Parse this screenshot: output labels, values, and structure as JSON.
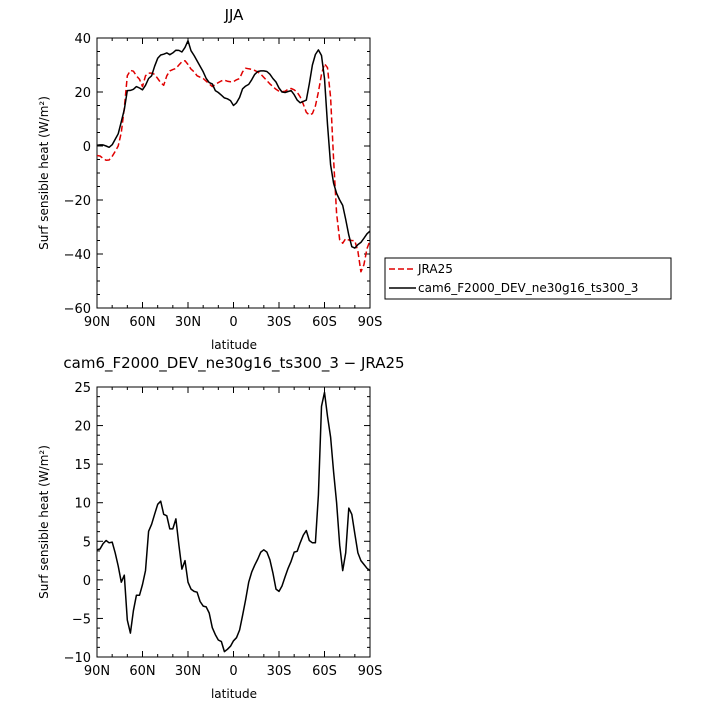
{
  "chart_data": [
    {
      "type": "line",
      "title": "JJA",
      "xlabel": "latitude",
      "ylabel": "Surf sensible heat (W/m²)",
      "xlim": [
        90,
        -90
      ],
      "ylim": [
        -60,
        40
      ],
      "xticks": [
        90,
        60,
        30,
        0,
        -30,
        -60,
        -90
      ],
      "xticklabels": [
        "90N",
        "60N",
        "30N",
        "0",
        "30S",
        "60S",
        "90S"
      ],
      "yticks": [
        -60,
        -40,
        -20,
        0,
        20,
        40
      ],
      "yticklabels": [
        "−60",
        "−40",
        "−20",
        "0",
        "20",
        "40"
      ],
      "legend": "right",
      "series": [
        {
          "name": "JRA25",
          "color": "#e00000",
          "dash": "dashed",
          "x": [
            90,
            88,
            86,
            84,
            82,
            80,
            78,
            76,
            74,
            72,
            70,
            68,
            66,
            64,
            62,
            60,
            58,
            56,
            54,
            52,
            50,
            48,
            46,
            44,
            42,
            40,
            38,
            36,
            34,
            32,
            30,
            28,
            26,
            24,
            22,
            20,
            18,
            16,
            14,
            12,
            10,
            8,
            6,
            4,
            2,
            0,
            -2,
            -4,
            -6,
            -8,
            -10,
            -12,
            -14,
            -16,
            -18,
            -20,
            -22,
            -24,
            -26,
            -28,
            -30,
            -32,
            -34,
            -36,
            -38,
            -40,
            -42,
            -44,
            -46,
            -48,
            -50,
            -52,
            -54,
            -56,
            -58,
            -60,
            -62,
            -64,
            -66,
            -68,
            -70,
            -72,
            -74,
            -76,
            -78,
            -80,
            -82,
            -84,
            -86,
            -88,
            -90
          ],
          "y": [
            -3.5,
            -3.7,
            -4.6,
            -5.3,
            -5.2,
            -3.8,
            -2,
            0,
            5,
            14,
            26,
            28,
            27.7,
            26,
            24.7,
            22,
            26,
            27,
            27,
            26.5,
            25,
            23.5,
            22.5,
            26,
            27.8,
            28.3,
            28.7,
            30,
            31.2,
            31.6,
            30.2,
            28.5,
            27.5,
            26,
            25.5,
            25,
            24,
            23,
            22,
            22.8,
            23.5,
            24.1,
            24.4,
            24,
            23.8,
            23.8,
            24.5,
            25,
            27.5,
            28.8,
            28.6,
            28.4,
            28,
            27.4,
            26.6,
            25.4,
            24.2,
            23,
            22,
            21,
            20.3,
            20.1,
            20.3,
            21,
            21.3,
            20.8,
            19.9,
            18.2,
            15.5,
            12.5,
            11.5,
            12,
            14.8,
            20,
            26.5,
            30.5,
            29,
            18,
            -5,
            -25,
            -34.8,
            -36,
            -34.3,
            -34.8,
            -35,
            -35.1,
            -39,
            -46.6,
            -44,
            -38,
            -35
          ]
        },
        {
          "name": "cam6_F2000_DEV_ne30g16_ts300_3",
          "color": "#000000",
          "dash": "solid",
          "x": [
            90,
            88,
            86,
            84,
            82,
            80,
            78,
            76,
            74,
            72,
            70,
            68,
            66,
            64,
            62,
            60,
            58,
            56,
            54,
            52,
            50,
            48,
            46,
            44,
            42,
            40,
            38,
            36,
            34,
            32,
            30,
            28,
            26,
            24,
            22,
            20,
            18,
            16,
            14,
            12,
            10,
            8,
            6,
            4,
            2,
            0,
            -2,
            -4,
            -6,
            -8,
            -10,
            -12,
            -14,
            -16,
            -18,
            -20,
            -22,
            -24,
            -26,
            -28,
            -30,
            -32,
            -34,
            -36,
            -38,
            -40,
            -42,
            -44,
            -46,
            -48,
            -50,
            -52,
            -54,
            -56,
            -58,
            -60,
            -62,
            -64,
            -66,
            -68,
            -70,
            -72,
            -74,
            -76,
            -78,
            -80,
            -82,
            -84,
            -86,
            -88,
            -90
          ],
          "y": [
            0.3,
            0.4,
            0.4,
            0,
            -0.5,
            0.5,
            2.5,
            4.5,
            9,
            13.5,
            20.5,
            20.6,
            21,
            22,
            21.5,
            20.8,
            22.5,
            25,
            26,
            29.5,
            32.5,
            33.7,
            34,
            34.5,
            33.8,
            34.5,
            35.5,
            35.4,
            34.8,
            36.5,
            39,
            35.3,
            33.5,
            31.5,
            29.5,
            27.5,
            25,
            23.5,
            23,
            20.5,
            19.8,
            18.8,
            17.8,
            17.5,
            16.8,
            15,
            16,
            18,
            21.2,
            22.2,
            22.8,
            24.5,
            26.5,
            27.6,
            27.8,
            27.8,
            27.6,
            26.6,
            25,
            23.7,
            21.5,
            20,
            19.8,
            20.2,
            20.5,
            19,
            17,
            16,
            16.5,
            17,
            23,
            30,
            33.9,
            35.6,
            33.5,
            25,
            8,
            -7,
            -13.8,
            -17.5,
            -20,
            -22,
            -27.2,
            -33,
            -37.3,
            -37.8,
            -36.5,
            -35.7,
            -34.2,
            -32.5,
            -31.5
          ]
        }
      ]
    },
    {
      "type": "line",
      "title": "cam6_F2000_DEV_ne30g16_ts300_3 − JRA25",
      "xlabel": "latitude",
      "ylabel": "Surf sensible heat (W/m²)",
      "xlim": [
        90,
        -90
      ],
      "ylim": [
        -10,
        25
      ],
      "xticks": [
        90,
        60,
        30,
        0,
        -30,
        -60,
        -90
      ],
      "xticklabels": [
        "90N",
        "60N",
        "30N",
        "0",
        "30S",
        "60S",
        "90S"
      ],
      "yticks": [
        -10,
        -5,
        0,
        5,
        10,
        15,
        20,
        25
      ],
      "yticklabels": [
        "−10",
        "−5",
        "0",
        "5",
        "10",
        "15",
        "20",
        "25"
      ],
      "series": [
        {
          "color": "#000000",
          "dash": "solid",
          "x": [
            90,
            88,
            86,
            84,
            82,
            80,
            78,
            76,
            74,
            72,
            70,
            68,
            66,
            64,
            62,
            60,
            58,
            56,
            54,
            52,
            50,
            48,
            46,
            44,
            42,
            40,
            38,
            36,
            34,
            32,
            30,
            28,
            26,
            24,
            22,
            20,
            18,
            16,
            14,
            12,
            10,
            8,
            6,
            4,
            2,
            0,
            -2,
            -4,
            -6,
            -8,
            -10,
            -12,
            -14,
            -16,
            -18,
            -20,
            -22,
            -24,
            -26,
            -28,
            -30,
            -32,
            -34,
            -36,
            -38,
            -40,
            -42,
            -44,
            -46,
            -48,
            -50,
            -52,
            -54,
            -56,
            -58,
            -60,
            -62,
            -64,
            -66,
            -68,
            -70,
            -72,
            -74,
            -76,
            -78,
            -80,
            -82,
            -84,
            -86,
            -88,
            -90
          ],
          "y": [
            3.9,
            4,
            4.7,
            5.1,
            4.8,
            4.9,
            3.5,
            1.8,
            -0.3,
            0.6,
            -5.2,
            -6.9,
            -4,
            -2,
            -2,
            -0.6,
            1.2,
            6.3,
            7.2,
            8.5,
            9.8,
            10.2,
            8.5,
            8.3,
            6.6,
            6.6,
            7.9,
            4.5,
            1.4,
            2.5,
            -0.3,
            -1.2,
            -1.5,
            -1.6,
            -2.8,
            -3.4,
            -3.5,
            -4.3,
            -6.2,
            -7.1,
            -7.8,
            -8,
            -9.3,
            -9,
            -8.6,
            -7.9,
            -7.5,
            -6.5,
            -4.6,
            -2.6,
            -0.3,
            1,
            1.9,
            2.7,
            3.6,
            3.9,
            3.6,
            2.6,
            0.9,
            -1.2,
            -1.5,
            -0.8,
            0.4,
            1.5,
            2.4,
            3.6,
            3.7,
            4.8,
            5.8,
            6.4,
            5.1,
            4.8,
            4.8,
            11,
            22.5,
            24.3,
            21.2,
            18.5,
            14,
            10,
            4.5,
            1.2,
            3.5,
            9.3,
            8.5,
            6,
            3.5,
            2.5,
            2,
            1.5,
            1.2
          ]
        }
      ]
    }
  ]
}
